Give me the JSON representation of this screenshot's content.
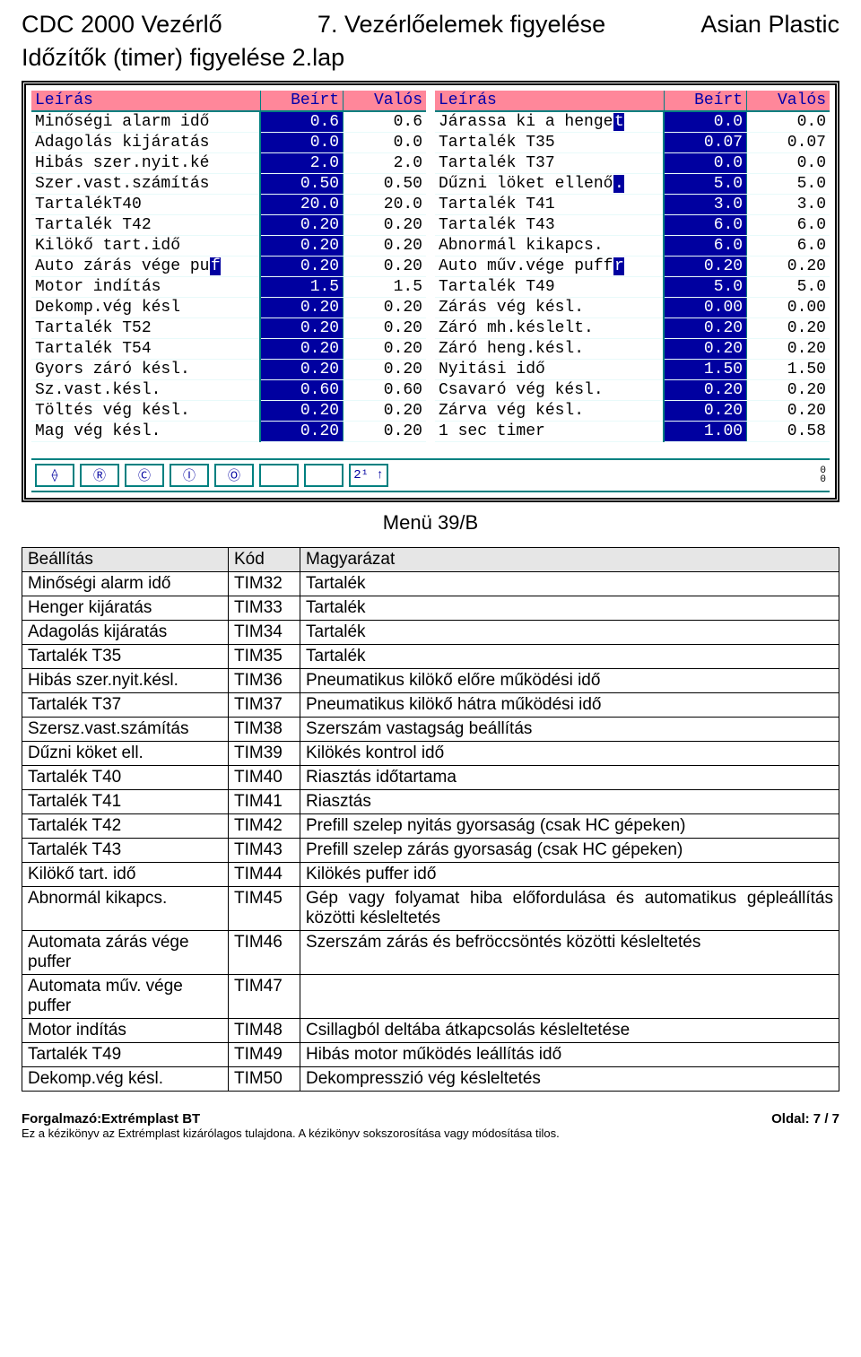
{
  "header": {
    "left": "CDC 2000 Vezérlő",
    "center": "7. Vezérlőelemek figyelése",
    "right": "Asian Plastic"
  },
  "subheader": "Időzítők (timer) figyelése 2.lap",
  "screen": {
    "headers": {
      "leiras": "Leírás",
      "beirt": "Beírt",
      "valos": "Valós"
    },
    "colors": {
      "header_bg": "#ff879a",
      "header_fg": "#0000aa",
      "beirt_bg": "#0000a0",
      "beirt_fg": "#ffffff",
      "teal": "#008080"
    },
    "left_rows": [
      {
        "desc": "Minőségi alarm idő",
        "beirt": "0.6",
        "valos": "0.6",
        "tail": ""
      },
      {
        "desc": "Adagolás kijáratás",
        "beirt": "0.0",
        "valos": "0.0",
        "tail": ""
      },
      {
        "desc": "Hibás szer.nyit.ké",
        "beirt": "2.0",
        "valos": "2.0",
        "tail": ""
      },
      {
        "desc": "Szer.vast.számítás",
        "beirt": "0.50",
        "valos": "0.50",
        "tail": ""
      },
      {
        "desc": "TartalékT40",
        "beirt": "20.0",
        "valos": "20.0",
        "tail": ""
      },
      {
        "desc": "Tartalék T42",
        "beirt": "0.20",
        "valos": "0.20",
        "tail": ""
      },
      {
        "desc": "Kilökő tart.idő",
        "beirt": "0.20",
        "valos": "0.20",
        "tail": ""
      },
      {
        "desc": "Auto zárás vége pu",
        "beirt": "0.20",
        "valos": "0.20",
        "tail": "f"
      },
      {
        "desc": "Motor indítás",
        "beirt": "1.5",
        "valos": "1.5",
        "tail": ""
      },
      {
        "desc": "Dekomp.vég késl",
        "beirt": "0.20",
        "valos": "0.20",
        "tail": ""
      },
      {
        "desc": "Tartalék T52",
        "beirt": "0.20",
        "valos": "0.20",
        "tail": ""
      },
      {
        "desc": "Tartalék T54",
        "beirt": "0.20",
        "valos": "0.20",
        "tail": ""
      },
      {
        "desc": "Gyors záró késl.",
        "beirt": "0.20",
        "valos": "0.20",
        "tail": ""
      },
      {
        "desc": "Sz.vast.késl.",
        "beirt": "0.60",
        "valos": "0.60",
        "tail": ""
      },
      {
        "desc": "Töltés vég késl.",
        "beirt": "0.20",
        "valos": "0.20",
        "tail": ""
      },
      {
        "desc": "Mag vég késl.",
        "beirt": "0.20",
        "valos": "0.20",
        "tail": ""
      }
    ],
    "right_rows": [
      {
        "desc": "Járassa ki a henge",
        "beirt": "0.0",
        "valos": "0.0",
        "tail": "t"
      },
      {
        "desc": "Tartalék T35",
        "beirt": "0.07",
        "valos": "0.07",
        "tail": ""
      },
      {
        "desc": "Tartalék T37",
        "beirt": "0.0",
        "valos": "0.0",
        "tail": ""
      },
      {
        "desc": "Dűzni löket ellenő",
        "beirt": "5.0",
        "valos": "5.0",
        "tail": "."
      },
      {
        "desc": "Tartalék T41",
        "beirt": "3.0",
        "valos": "3.0",
        "tail": ""
      },
      {
        "desc": "Tartalék T43",
        "beirt": "6.0",
        "valos": "6.0",
        "tail": ""
      },
      {
        "desc": "Abnormál kikapcs.",
        "beirt": "6.0",
        "valos": "6.0",
        "tail": ""
      },
      {
        "desc": "Auto műv.vége puff",
        "beirt": "0.20",
        "valos": "0.20",
        "tail": "r"
      },
      {
        "desc": "Tartalék T49",
        "beirt": "5.0",
        "valos": "5.0",
        "tail": ""
      },
      {
        "desc": "Zárás vég késl.",
        "beirt": "0.00",
        "valos": "0.00",
        "tail": ""
      },
      {
        "desc": "Záró mh.késlelt.",
        "beirt": "0.20",
        "valos": "0.20",
        "tail": ""
      },
      {
        "desc": "Záró heng.késl.",
        "beirt": "0.20",
        "valos": "0.20",
        "tail": ""
      },
      {
        "desc": "Nyitási idő",
        "beirt": "1.50",
        "valos": "1.50",
        "tail": ""
      },
      {
        "desc": "Csavaró vég késl.",
        "beirt": "0.20",
        "valos": "0.20",
        "tail": ""
      },
      {
        "desc": "Zárva vég késl.",
        "beirt": "0.20",
        "valos": "0.20",
        "tail": ""
      },
      {
        "desc": "1 sec timer",
        "beirt": "1.00",
        "valos": "0.58",
        "tail": ""
      }
    ],
    "statusbar": {
      "icons": [
        "⟠",
        "Ⓡ",
        "Ⓒ",
        "Ⓘ",
        "Ⓞ",
        "",
        "",
        "2¹ ↑"
      ],
      "right": "0\n0"
    }
  },
  "menu_caption": "Menü 39/B",
  "explain": {
    "headers": {
      "c1": "Beállítás",
      "c2": "Kód",
      "c3": "Magyarázat"
    },
    "rows": [
      {
        "c1": "Minőségi alarm idő",
        "c2": "TIM32",
        "c3": "Tartalék"
      },
      {
        "c1": "Henger kijáratás",
        "c2": "TIM33",
        "c3": "Tartalék"
      },
      {
        "c1": "Adagolás kijáratás",
        "c2": "TIM34",
        "c3": "Tartalék"
      },
      {
        "c1": "Tartalék T35",
        "c2": "TIM35",
        "c3": "Tartalék"
      },
      {
        "c1": "Hibás szer.nyit.késl.",
        "c2": "TIM36",
        "c3": "Pneumatikus kilökő előre működési idő"
      },
      {
        "c1": "Tartalék T37",
        "c2": "TIM37",
        "c3": "Pneumatikus kilökő hátra működési idő"
      },
      {
        "c1": "Szersz.vast.számítás",
        "c2": "TIM38",
        "c3": "Szerszám vastagság beállítás"
      },
      {
        "c1": "Dűzni köket ell.",
        "c2": "TIM39",
        "c3": "Kilökés kontrol idő"
      },
      {
        "c1": "Tartalék T40",
        "c2": "TIM40",
        "c3": "Riasztás időtartama"
      },
      {
        "c1": "Tartalék T41",
        "c2": "TIM41",
        "c3": "Riasztás"
      },
      {
        "c1": "Tartalék T42",
        "c2": "TIM42",
        "c3": "Prefill szelep nyitás gyorsaság (csak HC gépeken)"
      },
      {
        "c1": "Tartalék T43",
        "c2": "TIM43",
        "c3": "Prefill szelep zárás gyorsaság (csak HC gépeken)"
      },
      {
        "c1": "Kilökő tart. idő",
        "c2": "TIM44",
        "c3": "Kilökés puffer idő"
      },
      {
        "c1": "Abnormál kikapcs.",
        "c2": "TIM45",
        "c3": "Gép vagy folyamat hiba előfordulása és automatikus gépleállítás közötti késleltetés",
        "just": true
      },
      {
        "c1": "Automata zárás vége puffer",
        "c2": "TIM46",
        "c3": "Szerszám zárás és befröccsöntés közötti késleltetés"
      },
      {
        "c1": "Automata műv. vége puffer",
        "c2": "TIM47",
        "c3": ""
      },
      {
        "c1": "Motor indítás",
        "c2": "TIM48",
        "c3": "Csillagból deltába átkapcsolás késleltetése"
      },
      {
        "c1": "Tartalék T49",
        "c2": "TIM49",
        "c3": "Hibás motor működés leállítás idő"
      },
      {
        "c1": "Dekomp.vég késl.",
        "c2": "TIM50",
        "c3": "Dekompresszió vég késleltetés"
      }
    ]
  },
  "footer": {
    "left_bold": "Forgalmazó:Extrémplast BT",
    "right": "Oldal: 7 / 7",
    "note": "Ez a kézikönyv az Extrémplast kizárólagos tulajdona. A kézikönyv sokszorosítása vagy módosítása tilos."
  }
}
